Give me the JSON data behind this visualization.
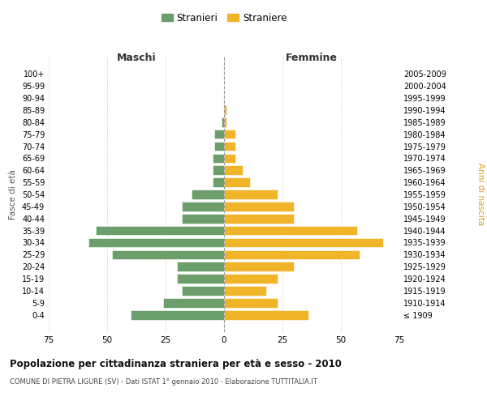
{
  "age_groups": [
    "100+",
    "95-99",
    "90-94",
    "85-89",
    "80-84",
    "75-79",
    "70-74",
    "65-69",
    "60-64",
    "55-59",
    "50-54",
    "45-49",
    "40-44",
    "35-39",
    "30-34",
    "25-29",
    "20-24",
    "15-19",
    "10-14",
    "5-9",
    "0-4"
  ],
  "birth_years": [
    "≤ 1909",
    "1910-1914",
    "1915-1919",
    "1920-1924",
    "1925-1929",
    "1930-1934",
    "1935-1939",
    "1940-1944",
    "1945-1949",
    "1950-1954",
    "1955-1959",
    "1960-1964",
    "1965-1969",
    "1970-1974",
    "1975-1979",
    "1980-1984",
    "1985-1989",
    "1990-1994",
    "1995-1999",
    "2000-2004",
    "2005-2009"
  ],
  "maschi": [
    0,
    0,
    0,
    0,
    1,
    4,
    4,
    5,
    5,
    5,
    14,
    18,
    18,
    55,
    58,
    48,
    20,
    20,
    18,
    26,
    40
  ],
  "femmine": [
    0,
    0,
    0,
    1,
    1,
    5,
    5,
    5,
    8,
    11,
    23,
    30,
    30,
    57,
    68,
    58,
    30,
    23,
    18,
    23,
    36
  ],
  "color_maschi": "#6b9e6b",
  "color_femmine": "#f0b429",
  "background_color": "#ffffff",
  "grid_color": "#cccccc",
  "title": "Popolazione per cittadinanza straniera per età e sesso - 2010",
  "subtitle": "COMUNE DI PIETRA LIGURE (SV) - Dati ISTAT 1° gennaio 2010 - Elaborazione TUTTITALIA.IT",
  "xlabel_left": "Maschi",
  "xlabel_right": "Femmine",
  "ylabel_left": "Fasce di età",
  "ylabel_right": "Anni di nascita",
  "legend_maschi": "Stranieri",
  "legend_femmine": "Straniere",
  "xlim": 75
}
